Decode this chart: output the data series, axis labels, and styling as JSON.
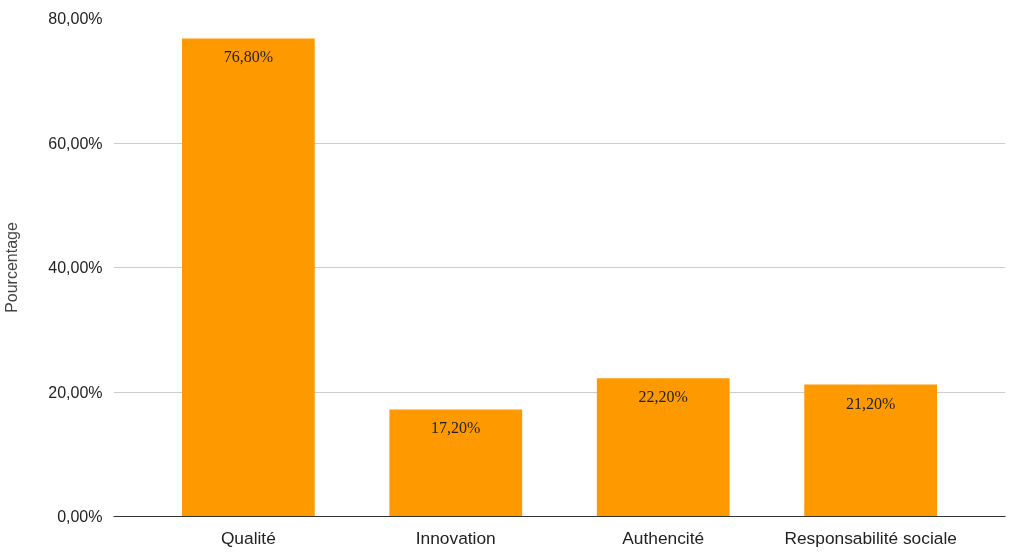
{
  "chart_data": {
    "type": "bar",
    "ylabel": "Pourcentage",
    "categories": [
      "Qualité",
      "Innovation",
      "Authencité",
      "Responsabilité sociale"
    ],
    "values": [
      76.8,
      17.2,
      22.2,
      21.2
    ],
    "value_labels": [
      "76,80%",
      "17,20%",
      "22,20%",
      "21,20%"
    ],
    "color": "#ff9900",
    "ylim": [
      0,
      80
    ],
    "yticks": [
      {
        "value": 0,
        "label": "0,00%"
      },
      {
        "value": 20,
        "label": "20,00%"
      },
      {
        "value": 40,
        "label": "40,00%"
      },
      {
        "value": 60,
        "label": "60,00%"
      },
      {
        "value": 80,
        "label": "80,00%"
      }
    ],
    "grid": "y"
  }
}
